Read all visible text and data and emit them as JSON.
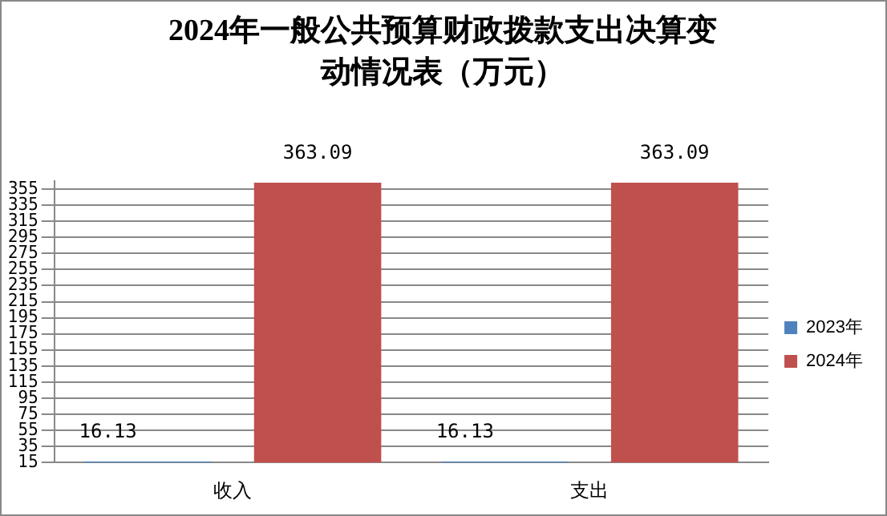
{
  "chart_data": {
    "type": "bar",
    "title": "2024年一般公共预算财政拨款支出决算变动情况表（万元）",
    "categories": [
      "收入",
      "支出"
    ],
    "series": [
      {
        "name": "2023年",
        "color": "#4f81bd",
        "values": [
          16.13,
          16.13
        ]
      },
      {
        "name": "2024年",
        "color": "#c0504d",
        "values": [
          363.09,
          363.09
        ]
      }
    ],
    "ylim": [
      15,
      365
    ],
    "yticks": [
      15,
      35,
      55,
      75,
      95,
      115,
      135,
      155,
      175,
      195,
      215,
      235,
      255,
      275,
      295,
      315,
      335,
      355
    ],
    "grid": "y",
    "legend": "right",
    "data_labels": true
  }
}
